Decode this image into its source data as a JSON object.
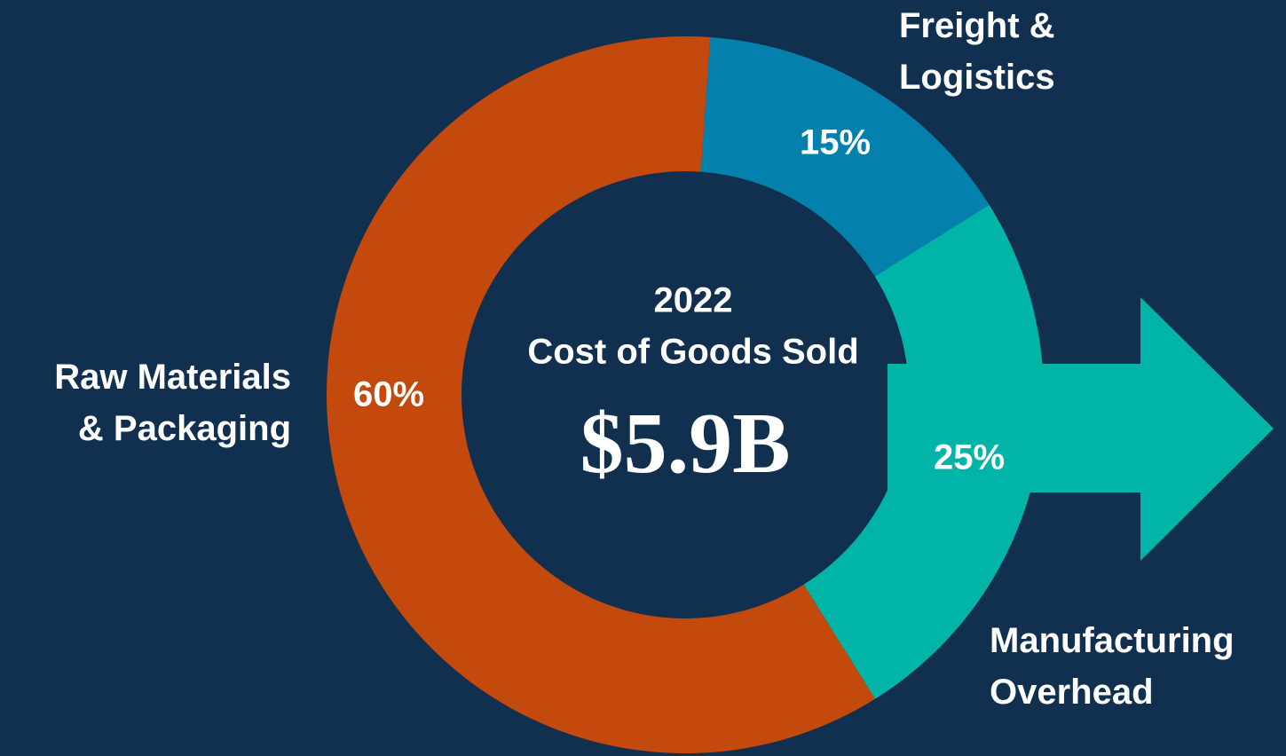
{
  "chart_data": {
    "type": "donut",
    "center_label": [
      "2022",
      "Cost of Goods Sold"
    ],
    "center_value": "$5.9B",
    "categories": [
      "Freight & Logistics",
      "Manufacturing Overhead",
      "Raw Materials & Packaging"
    ],
    "values": [
      15,
      25,
      60
    ],
    "value_labels": [
      "15%",
      "25%",
      "60%"
    ],
    "colors": [
      "#0480ad",
      "#00b5a8",
      "#c4490c"
    ]
  }
}
